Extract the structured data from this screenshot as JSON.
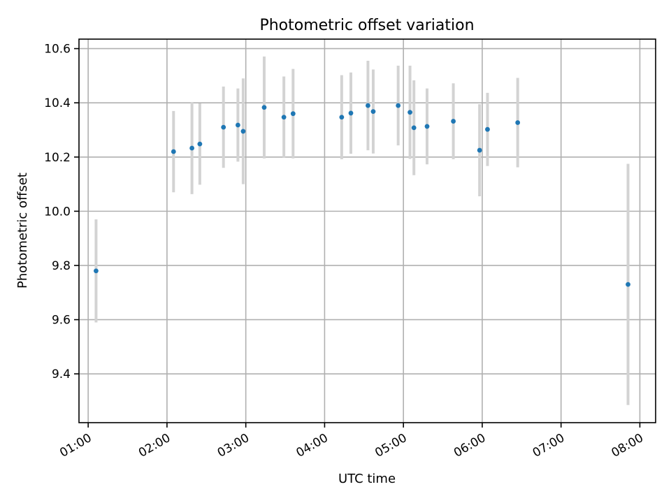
{
  "chart_data": {
    "type": "scatter",
    "title": "Photometric offset variation",
    "xlabel": "UTC time",
    "ylabel": "Photometric offset",
    "x_tick_labels": [
      "01:00",
      "02:00",
      "03:00",
      "04:00",
      "05:00",
      "06:00",
      "07:00",
      "08:00"
    ],
    "y_tick_labels": [
      "9.4",
      "9.6",
      "9.8",
      "10.0",
      "10.2",
      "10.4",
      "10.6"
    ],
    "xlim": [
      "00:53",
      "08:12"
    ],
    "ylim": [
      9.22,
      10.635
    ],
    "grid": true,
    "colors": {
      "point": "#1f77b4",
      "errorbar": "#d3d3d3",
      "grid": "#b0b0b0"
    },
    "points": [
      {
        "x": "01:06",
        "y": 9.78,
        "err": 0.19
      },
      {
        "x": "02:05",
        "y": 10.22,
        "err": 0.15
      },
      {
        "x": "02:19",
        "y": 10.233,
        "err": 0.17
      },
      {
        "x": "02:25",
        "y": 10.248,
        "err": 0.15
      },
      {
        "x": "02:43",
        "y": 10.31,
        "err": 0.15
      },
      {
        "x": "02:54",
        "y": 10.318,
        "err": 0.135
      },
      {
        "x": "02:58",
        "y": 10.295,
        "err": 0.195
      },
      {
        "x": "03:14",
        "y": 10.383,
        "err": 0.188
      },
      {
        "x": "03:29",
        "y": 10.347,
        "err": 0.15
      },
      {
        "x": "03:36",
        "y": 10.36,
        "err": 0.165
      },
      {
        "x": "04:13",
        "y": 10.347,
        "err": 0.155
      },
      {
        "x": "04:20",
        "y": 10.362,
        "err": 0.15
      },
      {
        "x": "04:33",
        "y": 10.39,
        "err": 0.165
      },
      {
        "x": "04:37",
        "y": 10.368,
        "err": 0.155
      },
      {
        "x": "04:56",
        "y": 10.39,
        "err": 0.147
      },
      {
        "x": "05:05",
        "y": 10.365,
        "err": 0.172
      },
      {
        "x": "05:08",
        "y": 10.308,
        "err": 0.175
      },
      {
        "x": "05:18",
        "y": 10.313,
        "err": 0.14
      },
      {
        "x": "05:38",
        "y": 10.332,
        "err": 0.14
      },
      {
        "x": "05:58",
        "y": 10.225,
        "err": 0.17
      },
      {
        "x": "06:04",
        "y": 10.302,
        "err": 0.135
      },
      {
        "x": "06:27",
        "y": 10.327,
        "err": 0.165
      },
      {
        "x": "07:51",
        "y": 9.73,
        "err": 0.445
      }
    ]
  }
}
